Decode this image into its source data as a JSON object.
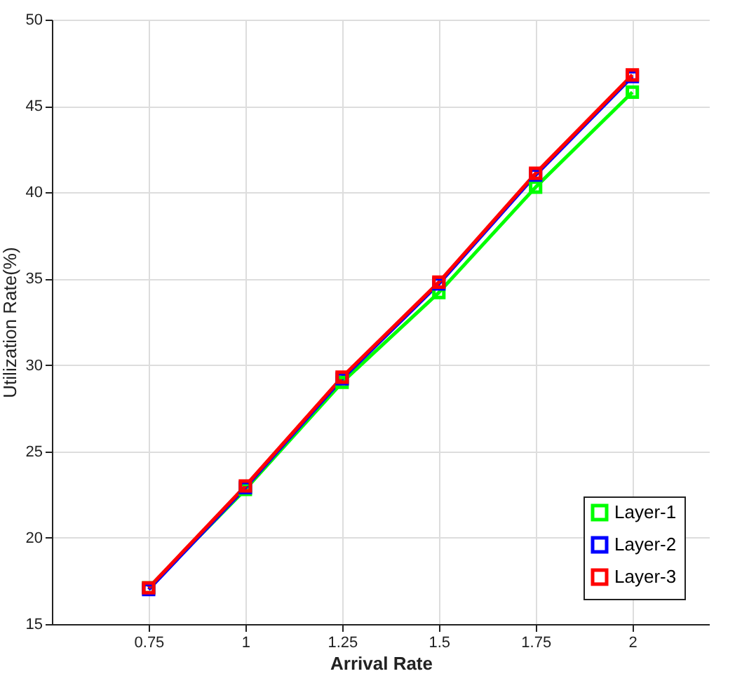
{
  "chart_data": {
    "type": "line",
    "xlabel": "Arrival Rate",
    "ylabel": "Utilization Rate(%)",
    "x": [
      0.75,
      1,
      1.25,
      1.5,
      1.75,
      2
    ],
    "series": [
      {
        "name": "Layer-1",
        "color": "#00ff00",
        "values": [
          17.1,
          22.8,
          29.0,
          34.2,
          40.3,
          45.8
        ]
      },
      {
        "name": "Layer-2",
        "color": "#0000ff",
        "values": [
          17.0,
          22.9,
          29.2,
          34.7,
          41.0,
          46.7
        ]
      },
      {
        "name": "Layer-3",
        "color": "#ff0000",
        "values": [
          17.1,
          23.0,
          29.3,
          34.8,
          41.1,
          46.8
        ]
      }
    ],
    "xlim": [
      0.5,
      2.2
    ],
    "xticks": [
      0.75,
      1,
      1.25,
      1.5,
      1.75,
      2
    ],
    "ylim": [
      15,
      50
    ],
    "yticks": [
      15,
      20,
      25,
      30,
      35,
      40,
      45,
      50
    ],
    "grid": true,
    "legend": "bottom right",
    "marker": "square",
    "line_style": "solid"
  }
}
